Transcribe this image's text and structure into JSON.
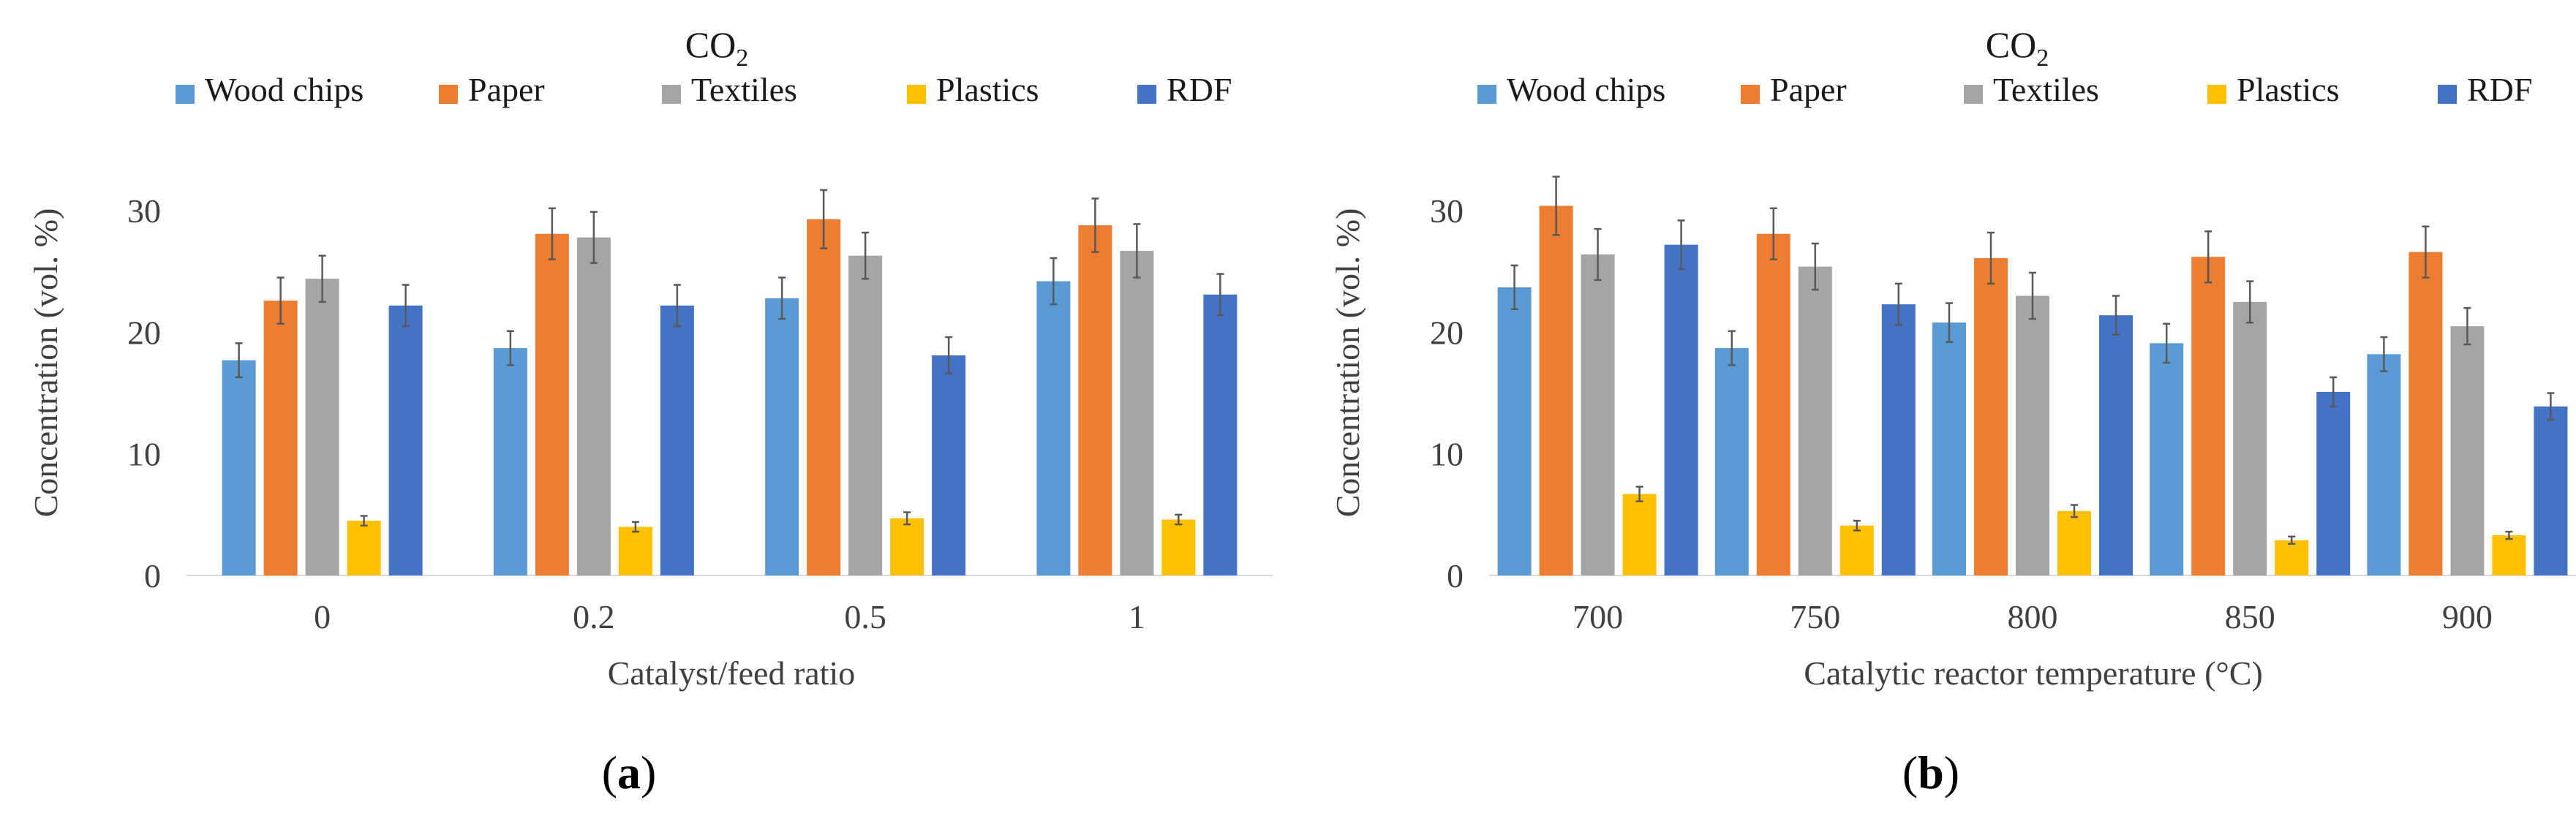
{
  "chart_data": [
    {
      "type": "bar",
      "panel_label": "(a)",
      "title": "CO",
      "title_subscript": "2",
      "xlabel": "Catalyst/feed ratio",
      "ylabel": "Concentration (vol. %)",
      "ylim": [
        0,
        35
      ],
      "yticks": [
        "0",
        "10",
        "20",
        "30"
      ],
      "grid": false,
      "legend_position": "top",
      "categories": [
        "0",
        "0.2",
        "0.5",
        "1"
      ],
      "series": [
        {
          "name": "Wood chips",
          "color": "#5B9BD5",
          "values": [
            17.7,
            18.7,
            22.8,
            24.2
          ],
          "errors": [
            1.4,
            1.4,
            1.7,
            1.9
          ]
        },
        {
          "name": "Paper",
          "color": "#ED7D31",
          "values": [
            22.6,
            28.1,
            29.3,
            28.8
          ],
          "errors": [
            1.9,
            2.1,
            2.4,
            2.2
          ]
        },
        {
          "name": "Textiles",
          "color": "#A5A5A5",
          "values": [
            24.4,
            27.8,
            26.3,
            26.7
          ],
          "errors": [
            1.9,
            2.1,
            1.9,
            2.2
          ]
        },
        {
          "name": "Plastics",
          "color": "#FFC000",
          "values": [
            4.5,
            4.0,
            4.7,
            4.6
          ],
          "errors": [
            0.4,
            0.4,
            0.5,
            0.4
          ]
        },
        {
          "name": "RDF",
          "color": "#4472C4",
          "values": [
            22.2,
            22.2,
            18.1,
            23.1
          ],
          "errors": [
            1.7,
            1.7,
            1.5,
            1.7
          ]
        }
      ]
    },
    {
      "type": "bar",
      "panel_label": "(b)",
      "title": "CO",
      "title_subscript": "2",
      "xlabel": "Catalytic reactor temperature (°C)",
      "ylabel": "Concentration (vol. %)",
      "ylim": [
        0,
        35
      ],
      "yticks": [
        "0",
        "10",
        "20",
        "30"
      ],
      "grid": false,
      "legend_position": "top",
      "categories": [
        "700",
        "750",
        "800",
        "850",
        "900"
      ],
      "series": [
        {
          "name": "Wood chips",
          "color": "#5B9BD5",
          "values": [
            23.7,
            18.7,
            20.8,
            19.1,
            18.2
          ],
          "errors": [
            1.8,
            1.4,
            1.6,
            1.6,
            1.4
          ]
        },
        {
          "name": "Paper",
          "color": "#ED7D31",
          "values": [
            30.4,
            28.1,
            26.1,
            26.2,
            26.6
          ],
          "errors": [
            2.4,
            2.1,
            2.1,
            2.1,
            2.1
          ]
        },
        {
          "name": "Textiles",
          "color": "#A5A5A5",
          "values": [
            26.4,
            25.4,
            23.0,
            22.5,
            20.5
          ],
          "errors": [
            2.1,
            1.9,
            1.9,
            1.7,
            1.5
          ]
        },
        {
          "name": "Plastics",
          "color": "#FFC000",
          "values": [
            6.7,
            4.1,
            5.3,
            2.9,
            3.3
          ],
          "errors": [
            0.6,
            0.4,
            0.5,
            0.3,
            0.3
          ]
        },
        {
          "name": "RDF",
          "color": "#4472C4",
          "values": [
            27.2,
            22.3,
            21.4,
            15.1,
            13.9
          ],
          "errors": [
            2.0,
            1.7,
            1.6,
            1.2,
            1.1
          ]
        }
      ]
    }
  ]
}
